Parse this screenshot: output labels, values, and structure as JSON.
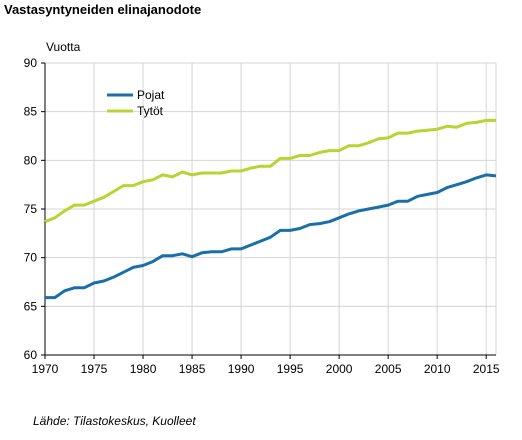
{
  "chart_data": {
    "type": "line",
    "title": "Vastasyntyneiden elinajanodote",
    "ylabel": "Vuotta",
    "xlabel": "",
    "source": "Lähde: Tilastokeskus, Kuolleet",
    "ylim": [
      60,
      90
    ],
    "yticks": [
      60,
      65,
      70,
      75,
      80,
      85,
      90
    ],
    "xlim": [
      1970,
      2016
    ],
    "xticks": [
      1970,
      1975,
      1980,
      1985,
      1990,
      1995,
      2000,
      2005,
      2010,
      2015
    ],
    "grid": true,
    "legend_position": "top-left",
    "x": [
      1970,
      1971,
      1972,
      1973,
      1974,
      1975,
      1976,
      1977,
      1978,
      1979,
      1980,
      1981,
      1982,
      1983,
      1984,
      1985,
      1986,
      1987,
      1988,
      1989,
      1990,
      1991,
      1992,
      1993,
      1994,
      1995,
      1996,
      1997,
      1998,
      1999,
      2000,
      2001,
      2002,
      2003,
      2004,
      2005,
      2006,
      2007,
      2008,
      2009,
      2010,
      2011,
      2012,
      2013,
      2014,
      2015,
      2016
    ],
    "series": [
      {
        "name": "Pojat",
        "color": "#1a6fa8",
        "values": [
          65.9,
          65.9,
          66.6,
          66.9,
          66.9,
          67.4,
          67.6,
          68.0,
          68.5,
          69.0,
          69.2,
          69.6,
          70.2,
          70.2,
          70.4,
          70.1,
          70.5,
          70.6,
          70.6,
          70.9,
          70.9,
          71.3,
          71.7,
          72.1,
          72.8,
          72.8,
          73.0,
          73.4,
          73.5,
          73.7,
          74.1,
          74.5,
          74.8,
          75.0,
          75.2,
          75.4,
          75.8,
          75.8,
          76.3,
          76.5,
          76.7,
          77.2,
          77.5,
          77.8,
          78.2,
          78.5,
          78.4
        ]
      },
      {
        "name": "Tytöt",
        "color": "#b8d434",
        "values": [
          73.7,
          74.1,
          74.8,
          75.4,
          75.4,
          75.8,
          76.2,
          76.8,
          77.4,
          77.4,
          77.8,
          78.0,
          78.5,
          78.3,
          78.8,
          78.5,
          78.7,
          78.7,
          78.7,
          78.9,
          78.9,
          79.2,
          79.4,
          79.4,
          80.2,
          80.2,
          80.5,
          80.5,
          80.8,
          81.0,
          81.0,
          81.5,
          81.5,
          81.8,
          82.2,
          82.3,
          82.8,
          82.8,
          83.0,
          83.1,
          83.2,
          83.5,
          83.4,
          83.8,
          83.9,
          84.1,
          84.1
        ]
      }
    ]
  }
}
